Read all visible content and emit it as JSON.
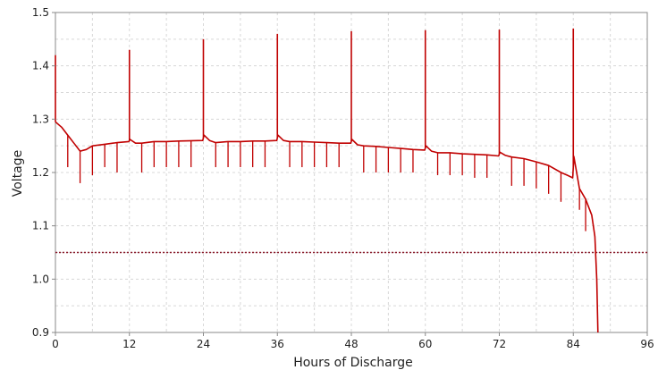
{
  "chart_data": {
    "type": "line",
    "title": "",
    "xlabel": "Hours of Discharge",
    "ylabel": "Voltage",
    "xlim": [
      0,
      96
    ],
    "ylim": [
      0.9,
      1.5
    ],
    "x_ticks": [
      0,
      12,
      24,
      36,
      48,
      60,
      72,
      84,
      96
    ],
    "x_tick_labels": [
      "0",
      "12",
      "24",
      "36",
      "48",
      "60",
      "72",
      "84",
      "96"
    ],
    "y_ticks": [
      0.9,
      1.0,
      1.1,
      1.2,
      1.3,
      1.4,
      1.5
    ],
    "y_tick_labels": [
      "0.9",
      "1.0",
      "1.1",
      "1.2",
      "1.3",
      "1.4",
      "1.5"
    ],
    "grid": true,
    "legend": "none",
    "colors": {
      "series": "#c00000",
      "threshold": "#8b1a2b",
      "grid": "#d8d8d8",
      "axis": "#888888"
    },
    "series": [
      {
        "x": [
          0,
          0.5,
          1,
          2,
          3,
          4,
          5,
          6,
          8,
          10,
          11.9,
          12.1,
          13,
          14,
          16,
          18,
          20,
          23.9,
          24.1,
          25,
          26,
          28,
          30,
          32,
          34,
          35.9,
          36.1,
          37,
          38,
          40,
          42,
          44,
          46,
          47.9,
          48.1,
          49,
          50,
          52,
          54,
          56,
          58,
          59.9,
          60.1,
          61,
          62,
          64,
          66,
          68,
          70,
          71.9,
          72.1,
          73,
          74,
          76,
          78,
          80,
          82,
          83,
          83.9,
          84.1,
          85,
          86,
          87,
          87.5,
          87.8,
          88
        ],
        "values": [
          1.295,
          1.29,
          1.285,
          1.27,
          1.255,
          1.24,
          1.243,
          1.25,
          1.253,
          1.256,
          1.258,
          1.262,
          1.255,
          1.255,
          1.258,
          1.258,
          1.259,
          1.26,
          1.27,
          1.26,
          1.256,
          1.258,
          1.258,
          1.259,
          1.259,
          1.26,
          1.27,
          1.26,
          1.258,
          1.258,
          1.257,
          1.256,
          1.255,
          1.255,
          1.262,
          1.252,
          1.25,
          1.249,
          1.247,
          1.245,
          1.243,
          1.242,
          1.25,
          1.24,
          1.237,
          1.237,
          1.235,
          1.234,
          1.233,
          1.231,
          1.238,
          1.232,
          1.229,
          1.226,
          1.22,
          1.213,
          1.2,
          1.195,
          1.19,
          1.23,
          1.17,
          1.15,
          1.12,
          1.08,
          1.0,
          0.9
        ]
      }
    ],
    "spikes_up": [
      {
        "x": 0,
        "value": 1.42
      },
      {
        "x": 12,
        "value": 1.43
      },
      {
        "x": 24,
        "value": 1.45
      },
      {
        "x": 36,
        "value": 1.46
      },
      {
        "x": 48,
        "value": 1.465
      },
      {
        "x": 60,
        "value": 1.467
      },
      {
        "x": 72,
        "value": 1.468
      },
      {
        "x": 84,
        "value": 1.47
      }
    ],
    "spikes_down": [
      {
        "x": 2,
        "value": 1.21
      },
      {
        "x": 4,
        "value": 1.18
      },
      {
        "x": 6,
        "value": 1.195
      },
      {
        "x": 8,
        "value": 1.21
      },
      {
        "x": 10,
        "value": 1.2
      },
      {
        "x": 14,
        "value": 1.2
      },
      {
        "x": 16,
        "value": 1.21
      },
      {
        "x": 18,
        "value": 1.21
      },
      {
        "x": 20,
        "value": 1.21
      },
      {
        "x": 22,
        "value": 1.21
      },
      {
        "x": 26,
        "value": 1.21
      },
      {
        "x": 28,
        "value": 1.21
      },
      {
        "x": 30,
        "value": 1.21
      },
      {
        "x": 32,
        "value": 1.21
      },
      {
        "x": 34,
        "value": 1.21
      },
      {
        "x": 38,
        "value": 1.21
      },
      {
        "x": 40,
        "value": 1.21
      },
      {
        "x": 42,
        "value": 1.21
      },
      {
        "x": 44,
        "value": 1.21
      },
      {
        "x": 46,
        "value": 1.21
      },
      {
        "x": 50,
        "value": 1.2
      },
      {
        "x": 52,
        "value": 1.2
      },
      {
        "x": 54,
        "value": 1.2
      },
      {
        "x": 56,
        "value": 1.2
      },
      {
        "x": 58,
        "value": 1.2
      },
      {
        "x": 62,
        "value": 1.195
      },
      {
        "x": 64,
        "value": 1.195
      },
      {
        "x": 66,
        "value": 1.195
      },
      {
        "x": 68,
        "value": 1.19
      },
      {
        "x": 70,
        "value": 1.19
      },
      {
        "x": 74,
        "value": 1.175
      },
      {
        "x": 76,
        "value": 1.175
      },
      {
        "x": 78,
        "value": 1.17
      },
      {
        "x": 80,
        "value": 1.16
      },
      {
        "x": 82,
        "value": 1.145
      },
      {
        "x": 85,
        "value": 1.13
      },
      {
        "x": 86,
        "value": 1.09
      }
    ],
    "reference_lines": [
      {
        "axis": "y",
        "value": 1.05,
        "style": "dotted"
      }
    ]
  }
}
